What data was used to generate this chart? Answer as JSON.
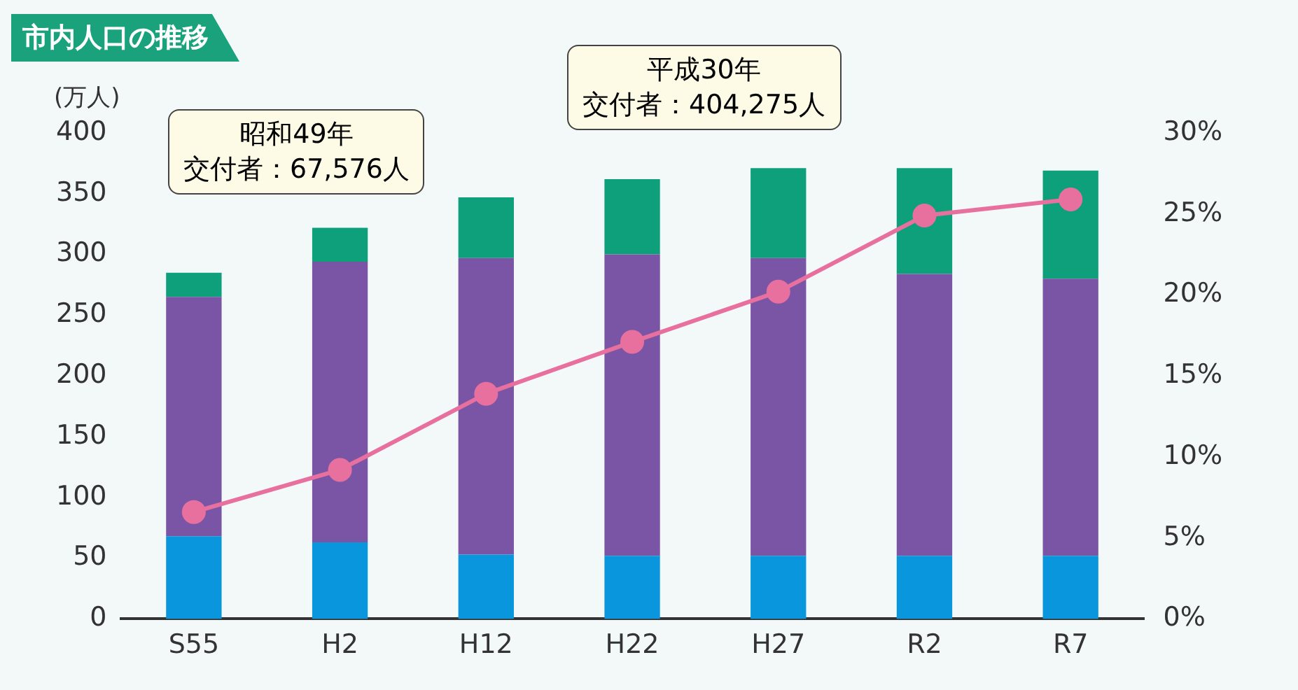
{
  "chart_data": {
    "type": "bar",
    "title": "市内人口の推移",
    "ylabel": "(万人)",
    "categories": [
      "S55",
      "H2",
      "H12",
      "H22",
      "H27",
      "R2",
      "R7"
    ],
    "stacked": true,
    "series": [
      {
        "color": "#0a96dc",
        "values": [
          68,
          63,
          53,
          52,
          52,
          52,
          52
        ]
      },
      {
        "color": "#7b55a5",
        "values": [
          197,
          231,
          244,
          248,
          245,
          232,
          228
        ]
      },
      {
        "color": "#0ea07b",
        "values": [
          20,
          28,
          50,
          62,
          74,
          87,
          89
        ]
      },
      {
        "type": "line",
        "axis": "y2",
        "color": "#e8709f",
        "values": [
          6.6,
          9.2,
          13.9,
          17.1,
          20.2,
          24.9,
          25.9
        ]
      }
    ],
    "ylim": [
      0,
      400
    ],
    "yticks": [
      0,
      50,
      100,
      150,
      200,
      250,
      300,
      350,
      400
    ],
    "y2lim": [
      0,
      30
    ],
    "y2ticks": [
      {
        "value": 0,
        "label": "0%"
      },
      {
        "value": 5,
        "label": "5%"
      },
      {
        "value": 10,
        "label": "10%"
      },
      {
        "value": 15,
        "label": "15%"
      },
      {
        "value": 20,
        "label": "20%"
      },
      {
        "value": 25,
        "label": "25%"
      },
      {
        "value": 30,
        "label": "30%"
      }
    ],
    "annotations": [
      "昭和49年",
      "交付者：67,576人",
      "平成30年",
      "交付者：404,275人"
    ],
    "grid": false,
    "legend": false,
    "marker": "circle"
  }
}
